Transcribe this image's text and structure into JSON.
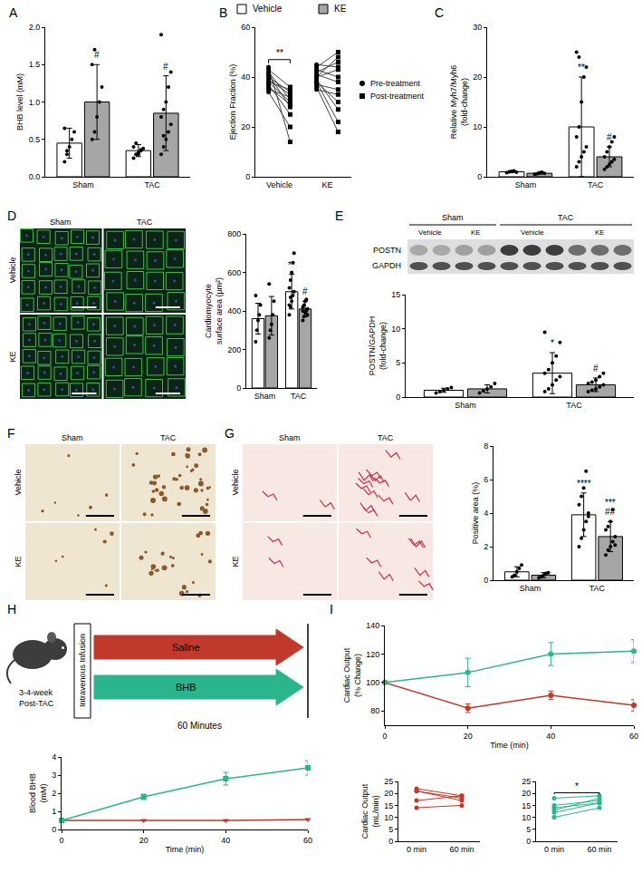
{
  "figure": {
    "legend_entries": [
      {
        "name": "Vehicle",
        "color": "#ffffff"
      },
      {
        "name": "KE",
        "color": "#a6a6a6"
      }
    ]
  },
  "chart_data": [
    {
      "panel": "A",
      "type": "bar",
      "categories": [
        "Sham",
        "TAC"
      ],
      "ylabel": [
        "BHB level (mM)"
      ],
      "ylim": [
        0,
        2
      ],
      "yticks": [
        {
          "value": 0,
          "label": "0.0"
        },
        {
          "value": 0.5,
          "label": "0.5"
        },
        {
          "value": 1,
          "label": "1.0"
        },
        {
          "value": 1.5,
          "label": "1.5"
        },
        {
          "value": 2,
          "label": "2.0"
        }
      ],
      "series": [
        {
          "name": "Vehicle",
          "color": "#ffffff",
          "values": [
            0.45,
            0.35
          ],
          "errors": [
            0.2,
            0.08
          ],
          "points": [
            [
              0.2,
              0.3,
              0.4,
              0.5,
              0.6,
              0.65,
              0.35
            ],
            [
              0.25,
              0.3,
              0.32,
              0.35,
              0.38,
              0.4,
              0.45,
              0.3,
              0.36
            ]
          ]
        },
        {
          "name": "KE",
          "color": "#a6a6a6",
          "values": [
            1.0,
            0.85
          ],
          "errors": [
            0.5,
            0.5
          ],
          "points": [
            [
              0.5,
              0.6,
              0.8,
              1.0,
              1.2,
              1.5,
              1.7
            ],
            [
              0.3,
              0.4,
              0.5,
              0.6,
              0.7,
              0.8,
              0.9,
              1.0,
              1.2,
              1.4,
              1.9,
              0.55
            ]
          ]
        }
      ],
      "annotations": [
        {
          "text": "#",
          "category": "Sham",
          "series": "KE"
        },
        {
          "text": "#",
          "category": "TAC",
          "series": "KE"
        }
      ]
    },
    {
      "panel": "B",
      "type": "paired_groups",
      "categories": [
        "Vehicle",
        "KE"
      ],
      "ylabel": [
        "Ejection Fraction (%)"
      ],
      "ylim": [
        0,
        60
      ],
      "yticks": [
        0,
        20,
        40,
        60
      ],
      "series": [
        {
          "name": "Pre-treatment",
          "marker": "circle",
          "values": [
            [
              43,
              40,
              38,
              37,
              36,
              35,
              41,
              44,
              39,
              34,
              38,
              42
            ],
            [
              42,
              44,
              40,
              38,
              37,
              41,
              36,
              43,
              39,
              35,
              40,
              38,
              45
            ]
          ]
        },
        {
          "name": "Post-treatment",
          "marker": "square",
          "values": [
            [
              36,
              34,
              30,
              25,
              29,
              32,
              28,
              14,
              33,
              20,
              35,
              31
            ],
            [
              46,
              50,
              43,
              30,
              35,
              38,
              18,
              40,
              27,
              33,
              48,
              22,
              44
            ]
          ]
        }
      ],
      "annotations": [
        {
          "text": "**",
          "category": "Vehicle"
        }
      ]
    },
    {
      "panel": "C",
      "type": "bar",
      "categories": [
        "Sham",
        "TAC"
      ],
      "ylabel": [
        "Relative Myh7/Myh6",
        "(fold-change)"
      ],
      "ylim": [
        0,
        30
      ],
      "yticks": [
        0,
        10,
        20,
        30
      ],
      "series": [
        {
          "name": "Vehicle",
          "color": "#ffffff",
          "values": [
            1.0,
            10
          ],
          "errors": [
            0.2,
            10
          ],
          "points": [
            [
              0.8,
              1,
              1.1,
              1.2,
              0.9
            ],
            [
              2,
              3,
              4,
              5,
              6,
              8,
              10,
              15,
              20,
              22,
              25,
              24
            ]
          ]
        },
        {
          "name": "KE",
          "color": "#a6a6a6",
          "values": [
            0.7,
            4
          ],
          "errors": [
            0.2,
            2
          ],
          "points": [
            [
              0.5,
              0.6,
              0.8,
              0.9,
              0.7
            ],
            [
              1.5,
              2,
              2.5,
              3,
              3.5,
              4,
              5,
              6,
              7,
              8
            ]
          ]
        }
      ],
      "annotations": [
        {
          "text": "**",
          "category": "TAC",
          "series": "Vehicle"
        },
        {
          "text": "#",
          "category": "TAC",
          "series": "KE"
        }
      ]
    },
    {
      "type": "bar",
      "categories": [
        "Sham",
        "TAC"
      ],
      "ylabel": [
        "Cardiomyocyte",
        "surface area (μm²)"
      ],
      "ylim": [
        0,
        800
      ],
      "yticks": [
        0,
        200,
        400,
        600,
        800
      ],
      "series": [
        {
          "name": "Vehicle",
          "color": "#ffffff",
          "values": [
            360,
            500
          ],
          "errors": [
            80,
            90
          ],
          "points": [
            [
              240,
              300,
              350,
              380,
              430,
              480
            ],
            [
              380,
              420,
              450,
              480,
              500,
              520,
              560,
              600,
              650,
              700,
              430,
              470
            ]
          ]
        },
        {
          "name": "KE",
          "color": "#a6a6a6",
          "values": [
            375,
            410
          ],
          "errors": [
            100,
            40
          ],
          "points": [
            [
              260,
              300,
              330,
              380,
              450,
              540
            ],
            [
              350,
              370,
              390,
              400,
              410,
              420,
              430,
              450,
              460,
              380,
              400
            ]
          ]
        }
      ],
      "annotations": [
        {
          "text": "**",
          "category": "TAC",
          "series": "Vehicle"
        },
        {
          "text": "#",
          "category": "TAC",
          "series": "KE"
        }
      ]
    },
    {
      "type": "bar",
      "categories": [
        "Sham",
        "TAC"
      ],
      "ylabel": [
        "POSTN/GAPDH",
        "(fold-change)"
      ],
      "ylim": [
        0,
        15
      ],
      "yticks": [
        0,
        5,
        10,
        15
      ],
      "series": [
        {
          "name": "Vehicle",
          "color": "#ffffff",
          "values": [
            1.0,
            3.5
          ],
          "errors": [
            0.3,
            3
          ],
          "points": [
            [
              0.6,
              0.8,
              1,
              1.2,
              1.4
            ],
            [
              0.8,
              1.2,
              1.8,
              2.5,
              3,
              3.5,
              4,
              5,
              6,
              8,
              9.5
            ]
          ]
        },
        {
          "name": "KE",
          "color": "#a6a6a6",
          "values": [
            1.2,
            1.8
          ],
          "errors": [
            0.6,
            1
          ],
          "points": [
            [
              0.6,
              0.9,
              1.2,
              1.5,
              2.0
            ],
            [
              0.8,
              1,
              1.2,
              1.5,
              1.8,
              2,
              2.2,
              2.5,
              3,
              3.5
            ]
          ]
        }
      ],
      "annotations": [
        {
          "text": "*",
          "category": "TAC",
          "series": "Vehicle"
        },
        {
          "text": "#",
          "category": "TAC",
          "series": "KE"
        }
      ]
    },
    {
      "type": "bar",
      "categories": [
        "Sham",
        "TAC"
      ],
      "ylabel": [
        "Positive area (%)"
      ],
      "ylim": [
        0,
        8
      ],
      "yticks": [
        0,
        2,
        4,
        6,
        8
      ],
      "series": [
        {
          "name": "Vehicle",
          "color": "#ffffff",
          "values": [
            0.5,
            3.9
          ],
          "errors": [
            0.3,
            1.3
          ],
          "points": [
            [
              0.2,
              0.3,
              0.5,
              0.7,
              0.9
            ],
            [
              2,
              2.5,
              3,
              3.5,
              4,
              4.5,
              5,
              5.5,
              6.5,
              3.8
            ]
          ]
        },
        {
          "name": "KE",
          "color": "#a6a6a6",
          "values": [
            0.3,
            2.6
          ],
          "errors": [
            0.15,
            0.9
          ],
          "points": [
            [
              0.15,
              0.2,
              0.3,
              0.4,
              0.45
            ],
            [
              1.5,
              1.8,
              2,
              2.3,
              2.6,
              3,
              3.2,
              3.5,
              4.2,
              2.1
            ]
          ]
        }
      ],
      "annotations": [
        {
          "text": "****",
          "category": "TAC",
          "series": "Vehicle"
        },
        {
          "text": "***",
          "category": "TAC",
          "series": "KE"
        },
        {
          "text": "##",
          "category": "TAC",
          "series": "KE"
        }
      ]
    },
    {
      "type": "line",
      "xlabel": "Time (min)",
      "ylabel": [
        "Blood BHB",
        "(mM)"
      ],
      "x": [
        0,
        20,
        40,
        60
      ],
      "xlim": [
        0,
        60
      ],
      "xticks": [
        0,
        20,
        40,
        60
      ],
      "ylim": [
        0,
        4
      ],
      "yticks": [
        0,
        1,
        2,
        3,
        4
      ],
      "series": [
        {
          "color": "#c0392b",
          "marker": "triangle-down",
          "values": [
            0.5,
            0.5,
            0.5,
            0.55
          ],
          "errors": [
            0,
            0.03,
            0.03,
            0.03
          ]
        },
        {
          "color": "#2bb58c",
          "marker": "square",
          "values": [
            0.5,
            1.8,
            2.8,
            3.4
          ],
          "errors": [
            0,
            0.15,
            0.35,
            0.4
          ]
        }
      ]
    },
    {
      "panel": "I",
      "type": "line",
      "xlabel": "Time (min)",
      "ylabel": [
        "Cardiac Output",
        "(% Change)"
      ],
      "x": [
        0,
        20,
        40,
        60
      ],
      "xlim": [
        0,
        60
      ],
      "xticks": [
        0,
        20,
        40,
        60
      ],
      "ylim": [
        70,
        140
      ],
      "yticks": [
        80,
        100,
        120,
        140
      ],
      "series": [
        {
          "color": "#c0392b",
          "marker": "circle",
          "values": [
            100,
            82,
            91,
            84
          ],
          "errors": [
            0,
            3,
            3,
            4
          ]
        },
        {
          "color": "#2bb58c",
          "marker": "circle",
          "values": [
            100,
            107,
            120,
            122
          ],
          "errors": [
            0,
            10,
            8,
            8
          ]
        }
      ]
    },
    {
      "type": "paired",
      "categories": [
        "0 min",
        "60 min"
      ],
      "ylabel": [
        "Cardiac Output",
        "(mL/min)"
      ],
      "ylim": [
        0,
        25
      ],
      "yticks": [
        0,
        5,
        10,
        15,
        20,
        25
      ],
      "series": [
        {
          "color": "#c0392b",
          "values": [
            [
              22,
              21,
              21,
              17,
              14
            ],
            [
              19,
              17,
              18,
              19,
              15
            ]
          ]
        }
      ]
    },
    {
      "type": "paired",
      "categories": [
        "0 min",
        "60 min"
      ],
      "ylim": [
        0,
        25
      ],
      "yticks": [
        0,
        5,
        10,
        15,
        20,
        25
      ],
      "series": [
        {
          "color": "#2bb58c",
          "values": [
            [
              18,
              15,
              14,
              13,
              12,
              10
            ],
            [
              19,
              17,
              16,
              18,
              16,
              14
            ]
          ]
        }
      ],
      "annotations": [
        {
          "text": "*"
        }
      ]
    }
  ],
  "images": [
    {
      "panel": "D",
      "columns": [
        "Sham",
        "TAC"
      ],
      "rows": [
        "Vehicle",
        "KE"
      ],
      "style": "fluorescence"
    },
    {
      "panel": "F",
      "columns": [
        "Sham",
        "TAC"
      ],
      "rows": [
        "Vehicle",
        "KE"
      ],
      "style": "ihc"
    },
    {
      "panel": "G",
      "columns": [
        "Sham",
        "TAC"
      ],
      "rows": [
        "Vehicle",
        "KE"
      ],
      "style": "picrosirius"
    }
  ],
  "blot": {
    "panel": "E",
    "groups": [
      "Sham",
      "TAC"
    ],
    "lanes": [
      "Vehicle",
      "KE"
    ],
    "bands": [
      "POSTN",
      "GAPDH"
    ]
  },
  "schematic": {
    "panel": "H",
    "subject_lines": [
      "3-4-week",
      "Post-TAC"
    ],
    "box": "Intravenous Infusion",
    "arms": [
      {
        "label": "Saline",
        "color": "#c0392b"
      },
      {
        "label": "BHB",
        "color": "#2bb58c"
      }
    ],
    "duration": "60 Minutes"
  }
}
